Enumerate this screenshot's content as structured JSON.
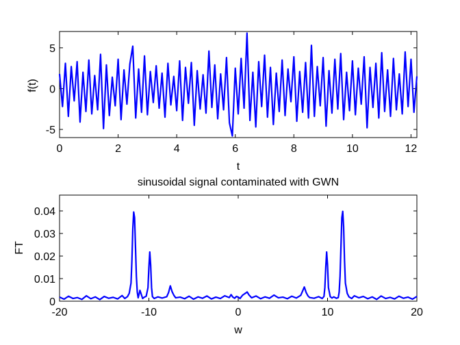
{
  "figure": {
    "background": "#ffffff"
  },
  "chart_data": [
    {
      "id": "time-plot",
      "type": "line",
      "title": "",
      "xlabel": "t",
      "ylabel": "f(t)",
      "xlim": [
        0,
        12.2
      ],
      "ylim": [
        -6,
        7
      ],
      "xticks": [
        0,
        2,
        4,
        6,
        8,
        10,
        12
      ],
      "xtick_labels": [
        "0",
        "2",
        "4",
        "6",
        "8",
        "10",
        "12"
      ],
      "yticks": [
        -5,
        0,
        5
      ],
      "ytick_labels": [
        "-5",
        "0",
        "5"
      ],
      "grid": false,
      "legend": "none",
      "series": [
        {
          "color": "#0000ff",
          "x": [
            0,
            0.1,
            0.2,
            0.3,
            0.4,
            0.5,
            0.6,
            0.7,
            0.8,
            0.9,
            1.0,
            1.1,
            1.2,
            1.3,
            1.4,
            1.5,
            1.6,
            1.7,
            1.8,
            1.9,
            2.0,
            2.1,
            2.2,
            2.3,
            2.4,
            2.5,
            2.6,
            2.7,
            2.8,
            2.9,
            3.0,
            3.1,
            3.2,
            3.3,
            3.4,
            3.5,
            3.6,
            3.7,
            3.8,
            3.9,
            4.0,
            4.1,
            4.2,
            4.3,
            4.4,
            4.5,
            4.6,
            4.7,
            4.8,
            4.9,
            5.0,
            5.1,
            5.2,
            5.3,
            5.4,
            5.5,
            5.6,
            5.7,
            5.8,
            5.9,
            6.0,
            6.1,
            6.2,
            6.3,
            6.4,
            6.5,
            6.6,
            6.7,
            6.8,
            6.9,
            7.0,
            7.1,
            7.2,
            7.3,
            7.4,
            7.5,
            7.6,
            7.7,
            7.8,
            7.9,
            8.0,
            8.1,
            8.2,
            8.3,
            8.4,
            8.5,
            8.6,
            8.7,
            8.8,
            8.9,
            9.0,
            9.1,
            9.2,
            9.3,
            9.4,
            9.5,
            9.6,
            9.7,
            9.8,
            9.9,
            10.0,
            10.1,
            10.2,
            10.3,
            10.4,
            10.5,
            10.6,
            10.7,
            10.8,
            10.9,
            11.0,
            11.1,
            11.2,
            11.3,
            11.4,
            11.5,
            11.6,
            11.7,
            11.8,
            11.9,
            12.0,
            12.1,
            12.2
          ],
          "y": [
            1.8,
            -2.2,
            3.1,
            -3.4,
            2.7,
            -1.5,
            3.3,
            -4.1,
            2.0,
            -2.8,
            3.5,
            -3.1,
            1.6,
            -2.6,
            4.2,
            -4.9,
            2.9,
            -3.3,
            1.4,
            -2.1,
            3.6,
            -3.8,
            2.3,
            -1.9,
            3.0,
            5.2,
            -3.6,
            2.4,
            -2.9,
            4.0,
            -3.2,
            2.1,
            -1.7,
            2.8,
            -2.4,
            1.9,
            -3.5,
            3.1,
            -2.0,
            1.5,
            -2.7,
            3.4,
            -3.9,
            2.6,
            -1.8,
            3.2,
            -4.5,
            2.2,
            -2.5,
            1.7,
            -3.0,
            4.6,
            -2.3,
            2.9,
            -3.7,
            1.8,
            -2.6,
            3.8,
            -4.2,
            -5.8,
            2.5,
            -3.1,
            3.7,
            -2.4,
            6.8,
            -3.9,
            2.0,
            -4.7,
            3.3,
            -2.2,
            4.1,
            -3.5,
            2.6,
            -4.4,
            1.9,
            -2.8,
            3.5,
            -3.3,
            2.4,
            -1.6,
            3.9,
            -4.0,
            2.1,
            -2.9,
            3.2,
            -3.6,
            5.3,
            -3.4,
            2.7,
            -2.1,
            3.8,
            -4.6,
            2.2,
            -3.0,
            3.6,
            -2.5,
            4.3,
            -3.8,
            2.0,
            -2.7,
            3.4,
            -3.2,
            2.5,
            -1.9,
            3.9,
            -4.8,
            2.6,
            -2.3,
            3.1,
            -3.6,
            4.4,
            -2.8,
            2.3,
            -3.4,
            3.7,
            -2.6,
            1.8,
            -3.1,
            4.5,
            -2.2,
            3.6,
            -2.9,
            1.5
          ]
        }
      ]
    },
    {
      "id": "spectrum-plot",
      "type": "line",
      "title": "sinusoidal signal contaminated with GWN",
      "xlabel": "w",
      "ylabel": "FT",
      "xlim": [
        -20,
        20
      ],
      "ylim": [
        0,
        0.047
      ],
      "xticks": [
        -20,
        -10,
        0,
        10,
        20
      ],
      "xtick_labels": [
        "-20",
        "-10",
        "0",
        "10",
        "20"
      ],
      "yticks": [
        0,
        0.01,
        0.02,
        0.03,
        0.04
      ],
      "ytick_labels": [
        "0",
        "0.01",
        "0.02",
        "0.03",
        "0.04"
      ],
      "grid": false,
      "legend": "none",
      "series": [
        {
          "color": "#0000ff",
          "x": [
            -20,
            -19.5,
            -19,
            -18.5,
            -18,
            -17.5,
            -17,
            -16.5,
            -16,
            -15.5,
            -15,
            -14.5,
            -14,
            -13.5,
            -13,
            -12.7,
            -12.4,
            -12.2,
            -12.0,
            -11.9,
            -11.8,
            -11.7,
            -11.6,
            -11.5,
            -11.4,
            -11.3,
            -11.2,
            -11.0,
            -10.7,
            -10.5,
            -10.3,
            -10.1,
            -10.0,
            -9.9,
            -9.8,
            -9.7,
            -9.6,
            -9.4,
            -9.0,
            -8.5,
            -8.0,
            -7.8,
            -7.6,
            -7.4,
            -7.2,
            -7.0,
            -6.5,
            -6.0,
            -5.5,
            -5.0,
            -4.5,
            -4.0,
            -3.5,
            -3.0,
            -2.5,
            -2.0,
            -1.5,
            -1.0,
            -0.8,
            -0.6,
            -0.4,
            -0.2,
            0,
            0.2,
            0.5,
            0.8,
            1.0,
            1.2,
            1.5,
            2.0,
            2.5,
            3.0,
            3.5,
            4.0,
            4.5,
            5.0,
            5.5,
            6.0,
            6.5,
            7.0,
            7.2,
            7.4,
            7.6,
            7.8,
            8.0,
            8.5,
            9.0,
            9.4,
            9.6,
            9.7,
            9.8,
            9.9,
            10.0,
            10.1,
            10.3,
            10.5,
            10.7,
            11.0,
            11.2,
            11.3,
            11.4,
            11.5,
            11.6,
            11.7,
            11.8,
            11.9,
            12.0,
            12.2,
            12.4,
            12.7,
            13.0,
            13.5,
            14.0,
            14.5,
            15.0,
            15.5,
            16.0,
            16.5,
            17.0,
            17.5,
            18.0,
            18.5,
            19.0,
            19.5,
            20
          ],
          "y": [
            0.0018,
            0.0009,
            0.0022,
            0.0012,
            0.0016,
            0.0008,
            0.0024,
            0.0011,
            0.0019,
            0.0007,
            0.0021,
            0.0013,
            0.0017,
            0.001,
            0.0025,
            0.0012,
            0.002,
            0.0035,
            0.008,
            0.018,
            0.032,
            0.0395,
            0.037,
            0.024,
            0.011,
            0.004,
            0.0015,
            0.0048,
            0.0012,
            0.0018,
            0.0022,
            0.006,
            0.015,
            0.0218,
            0.016,
            0.006,
            0.002,
            0.0012,
            0.0019,
            0.0014,
            0.002,
            0.0038,
            0.0068,
            0.0042,
            0.0026,
            0.0015,
            0.0018,
            0.0011,
            0.0022,
            0.0009,
            0.0019,
            0.0013,
            0.0023,
            0.001,
            0.0018,
            0.0012,
            0.0024,
            0.0016,
            0.0029,
            0.0018,
            0.0013,
            0.0021,
            0.0018,
            0.0012,
            0.0027,
            0.0035,
            0.0041,
            0.0028,
            0.0015,
            0.0023,
            0.0011,
            0.0019,
            0.0013,
            0.0027,
            0.0015,
            0.0018,
            0.0011,
            0.0022,
            0.0014,
            0.0026,
            0.0044,
            0.0063,
            0.0039,
            0.0024,
            0.0016,
            0.0013,
            0.002,
            0.0012,
            0.0021,
            0.006,
            0.015,
            0.0218,
            0.016,
            0.006,
            0.002,
            0.0014,
            0.0019,
            0.0013,
            0.0016,
            0.004,
            0.011,
            0.024,
            0.037,
            0.0398,
            0.033,
            0.018,
            0.008,
            0.0035,
            0.0019,
            0.0012,
            0.0024,
            0.0015,
            0.0021,
            0.0011,
            0.0019,
            0.0008,
            0.0023,
            0.0012,
            0.0017,
            0.001,
            0.0022,
            0.0013,
            0.0018,
            0.0009,
            0.0021
          ]
        }
      ]
    }
  ]
}
